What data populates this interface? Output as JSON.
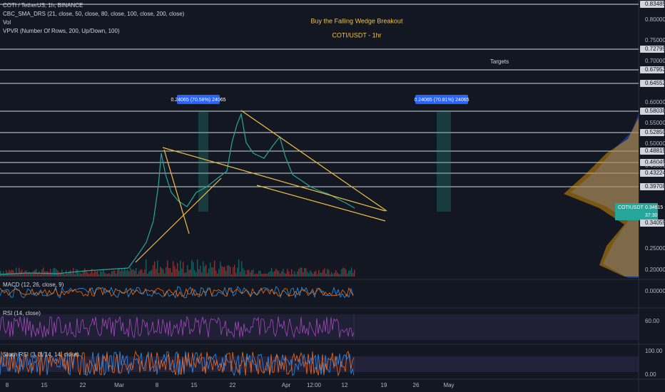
{
  "header": {
    "symbol": "COTI / TetherUS, 1h, BINANCE",
    "indicator": "CBC_SMA_DRS (21, close, 50, close, 80, close, 100, close, 200, close)",
    "volume": "Vol",
    "vpvr": "VPVR (Number Of Rows, 200, Up/Down, 100)"
  },
  "annotations": {
    "title": "Buy the Falling Wedge Breakout",
    "subtitle": "COTI/USDT - 1hr",
    "targets": "Targets",
    "measure_left": "0.24065 (70.58%) 24065",
    "measure_right": "0.24065 (70.81%) 24065"
  },
  "price_axis": [
    "0.83485",
    "0.80000",
    "0.75000",
    "0.72795",
    "0.70000",
    "0.67953",
    "0.64552",
    "0.60000",
    "0.58038",
    "0.55000",
    "0.52850",
    "0.50000",
    "0.48815",
    "0.46049",
    "0.45000",
    "0.43224",
    "0.39708",
    "0.34059",
    "0.25000",
    "0.20000"
  ],
  "last_price": {
    "symbol": "COTIUSDT",
    "price": "0.34615",
    "countdown": "37:30"
  },
  "panels": {
    "macd": "MACD (12, 26, close, 9)",
    "macd_axis": "0.00000",
    "rsi": "RSI (14, close)",
    "rsi_axis": "60.00",
    "stoch": "Stoch RSI (3, 3, 14, 14, close)",
    "stoch_axis": [
      "100.00",
      "0.00"
    ]
  },
  "time_axis": [
    "8",
    "15",
    "22",
    "Mar",
    "8",
    "15",
    "22",
    "Apr",
    "12:00",
    "12",
    "19",
    "26",
    "May"
  ]
}
